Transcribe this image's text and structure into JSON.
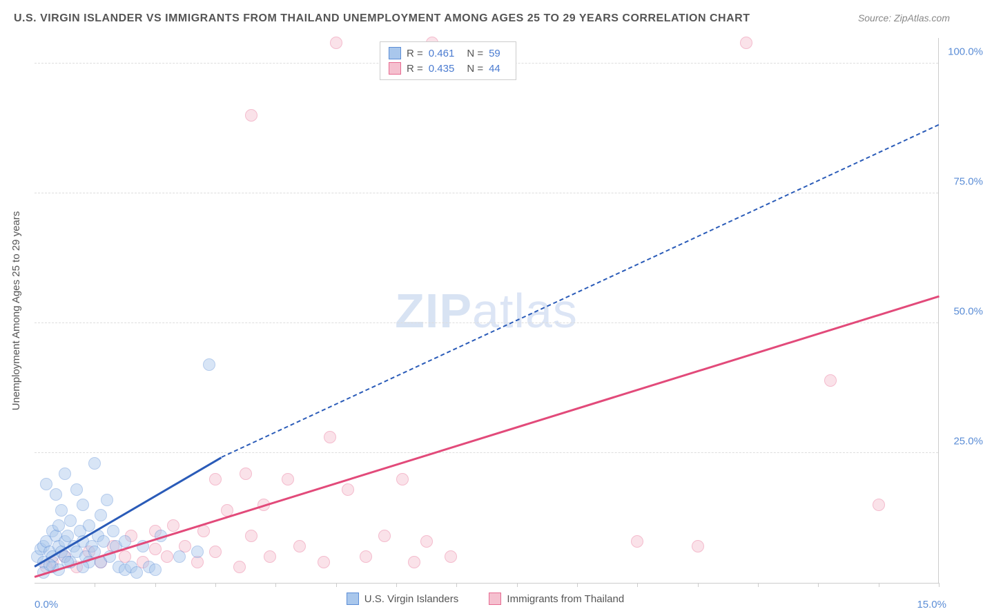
{
  "title": "U.S. VIRGIN ISLANDER VS IMMIGRANTS FROM THAILAND UNEMPLOYMENT AMONG AGES 25 TO 29 YEARS CORRELATION CHART",
  "source": "Source: ZipAtlas.com",
  "ylabel": "Unemployment Among Ages 25 to 29 years",
  "watermark_a": "ZIP",
  "watermark_b": "atlas",
  "chart": {
    "type": "scatter",
    "xlim": [
      0,
      15
    ],
    "ylim": [
      0,
      105
    ],
    "y_ticks": [
      25,
      50,
      75,
      100
    ],
    "y_tick_labels": [
      "25.0%",
      "50.0%",
      "75.0%",
      "100.0%"
    ],
    "x_tick_start": "0.0%",
    "x_tick_end": "15.0%",
    "x_minor_ticks": [
      1,
      2,
      3,
      4,
      5,
      6,
      7,
      8,
      9,
      10,
      11,
      12,
      13,
      14,
      15
    ],
    "background_color": "#ffffff",
    "grid_color": "#dddddd",
    "tick_label_color": "#5b8dd6",
    "tick_label_fontsize": 15,
    "title_fontsize": 16,
    "title_color": "#555555",
    "point_radius": 9,
    "point_opacity": 0.45
  },
  "series_a": {
    "name": "U.S. Virgin Islanders",
    "color_fill": "#a9c7ec",
    "color_stroke": "#5b8dd6",
    "line_color": "#2a5bb8",
    "R": "0.461",
    "N": "59",
    "trend": {
      "x1": 0,
      "y1": 3,
      "x2": 3.1,
      "y2": 24,
      "dash_x2": 15,
      "dash_y2": 88
    },
    "points": [
      [
        0.05,
        5
      ],
      [
        0.1,
        6.5
      ],
      [
        0.15,
        7
      ],
      [
        0.15,
        4
      ],
      [
        0.2,
        8
      ],
      [
        0.2,
        19
      ],
      [
        0.25,
        6
      ],
      [
        0.3,
        10
      ],
      [
        0.3,
        5
      ],
      [
        0.35,
        9
      ],
      [
        0.35,
        17
      ],
      [
        0.4,
        7
      ],
      [
        0.4,
        11
      ],
      [
        0.45,
        6
      ],
      [
        0.45,
        14
      ],
      [
        0.5,
        5
      ],
      [
        0.5,
        8
      ],
      [
        0.5,
        21
      ],
      [
        0.55,
        9
      ],
      [
        0.6,
        4
      ],
      [
        0.6,
        12
      ],
      [
        0.65,
        7
      ],
      [
        0.7,
        18
      ],
      [
        0.7,
        6
      ],
      [
        0.75,
        10
      ],
      [
        0.8,
        8
      ],
      [
        0.8,
        15
      ],
      [
        0.85,
        5
      ],
      [
        0.9,
        11
      ],
      [
        0.9,
        4
      ],
      [
        0.95,
        7
      ],
      [
        1.0,
        23
      ],
      [
        1.0,
        6
      ],
      [
        1.05,
        9
      ],
      [
        1.1,
        13
      ],
      [
        1.1,
        4
      ],
      [
        1.15,
        8
      ],
      [
        1.2,
        16
      ],
      [
        1.25,
        5
      ],
      [
        1.3,
        10
      ],
      [
        1.35,
        7
      ],
      [
        1.4,
        3
      ],
      [
        1.5,
        2.5
      ],
      [
        1.5,
        8
      ],
      [
        1.6,
        3
      ],
      [
        1.7,
        2
      ],
      [
        1.8,
        7
      ],
      [
        1.9,
        3
      ],
      [
        2.0,
        2.5
      ],
      [
        2.1,
        9
      ],
      [
        2.4,
        5
      ],
      [
        2.7,
        6
      ],
      [
        2.9,
        42
      ],
      [
        0.3,
        3
      ],
      [
        0.4,
        2.5
      ],
      [
        0.15,
        2
      ],
      [
        0.25,
        3.5
      ],
      [
        0.55,
        4
      ],
      [
        0.8,
        3
      ]
    ]
  },
  "series_b": {
    "name": "Immigrants from Thailand",
    "color_fill": "#f5c0cf",
    "color_stroke": "#e76a91",
    "line_color": "#e24a7a",
    "R": "0.435",
    "N": "44",
    "trend": {
      "x1": 0,
      "y1": 1,
      "x2": 15,
      "y2": 55
    },
    "points": [
      [
        0.3,
        4
      ],
      [
        0.5,
        5
      ],
      [
        0.7,
        3
      ],
      [
        0.9,
        6
      ],
      [
        1.1,
        4
      ],
      [
        1.3,
        7
      ],
      [
        1.5,
        5
      ],
      [
        1.6,
        9
      ],
      [
        1.8,
        4
      ],
      [
        2.0,
        6.5
      ],
      [
        2.0,
        10
      ],
      [
        2.2,
        5
      ],
      [
        2.3,
        11
      ],
      [
        2.5,
        7
      ],
      [
        2.7,
        4
      ],
      [
        2.8,
        10
      ],
      [
        3.0,
        6
      ],
      [
        3.0,
        20
      ],
      [
        3.2,
        14
      ],
      [
        3.4,
        3
      ],
      [
        3.5,
        21
      ],
      [
        3.6,
        9
      ],
      [
        3.6,
        90
      ],
      [
        3.8,
        15
      ],
      [
        3.9,
        5
      ],
      [
        4.2,
        20
      ],
      [
        4.4,
        7
      ],
      [
        4.8,
        4
      ],
      [
        4.9,
        28
      ],
      [
        5.0,
        104
      ],
      [
        5.2,
        18
      ],
      [
        5.5,
        5
      ],
      [
        5.8,
        9
      ],
      [
        6.1,
        20
      ],
      [
        6.3,
        4
      ],
      [
        6.5,
        8
      ],
      [
        6.6,
        104
      ],
      [
        6.9,
        5
      ],
      [
        10.0,
        8
      ],
      [
        11.0,
        7
      ],
      [
        11.8,
        104
      ],
      [
        13.2,
        39
      ],
      [
        14.0,
        15
      ],
      [
        0.2,
        3
      ]
    ]
  },
  "legend_labels": {
    "R": "R  =",
    "N": "N  ="
  }
}
